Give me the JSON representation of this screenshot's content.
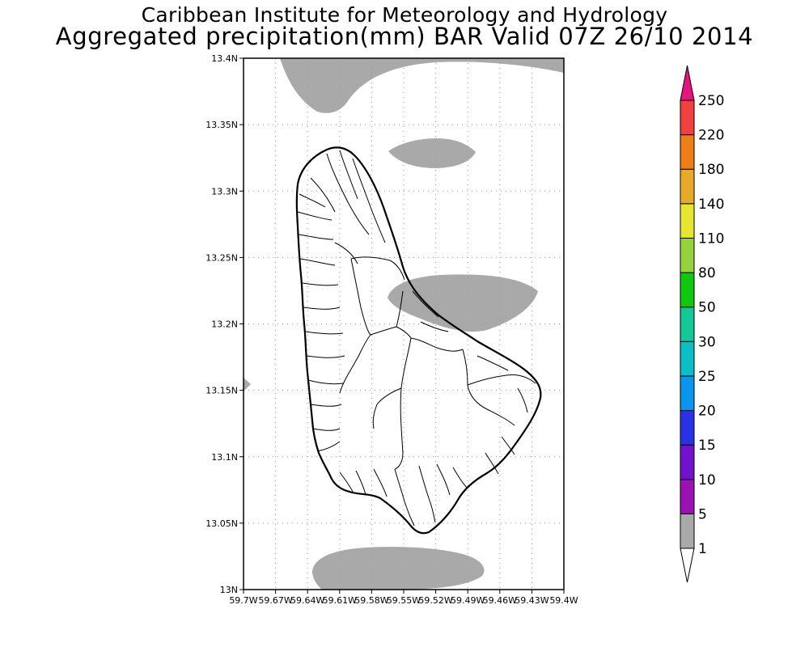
{
  "header": {
    "institution": "Caribbean Institute for Meteorology and Hydrology",
    "product": "Aggregated precipitation(mm) BAR Valid 07Z 26/10 2014"
  },
  "map": {
    "lat_ticks": [
      "13.4N",
      "13.35N",
      "13.3N",
      "13.25N",
      "13.2N",
      "13.15N",
      "13.1N",
      "13.05N",
      "13N"
    ],
    "lon_ticks": [
      "59.7W",
      "59.67W",
      "59.64W",
      "59.61W",
      "59.58W",
      "59.55W",
      "59.52W",
      "59.49W",
      "59.46W",
      "59.43W",
      "59.4W"
    ],
    "precip_fill_color": "#a9a9a9",
    "coastline_color": "#000000"
  },
  "legend": {
    "levels": [
      "1",
      "5",
      "10",
      "15",
      "20",
      "25",
      "30",
      "50",
      "80",
      "110",
      "140",
      "180",
      "220",
      "250"
    ],
    "colors": [
      "#ffffff",
      "#a9a9a9",
      "#9a12b4",
      "#7212cc",
      "#2a32e6",
      "#0b96ee",
      "#0bbec8",
      "#14c89a",
      "#10c810",
      "#96d23c",
      "#e6e632",
      "#e6aa28",
      "#ee7d1a",
      "#f04040",
      "#e6147d"
    ]
  }
}
